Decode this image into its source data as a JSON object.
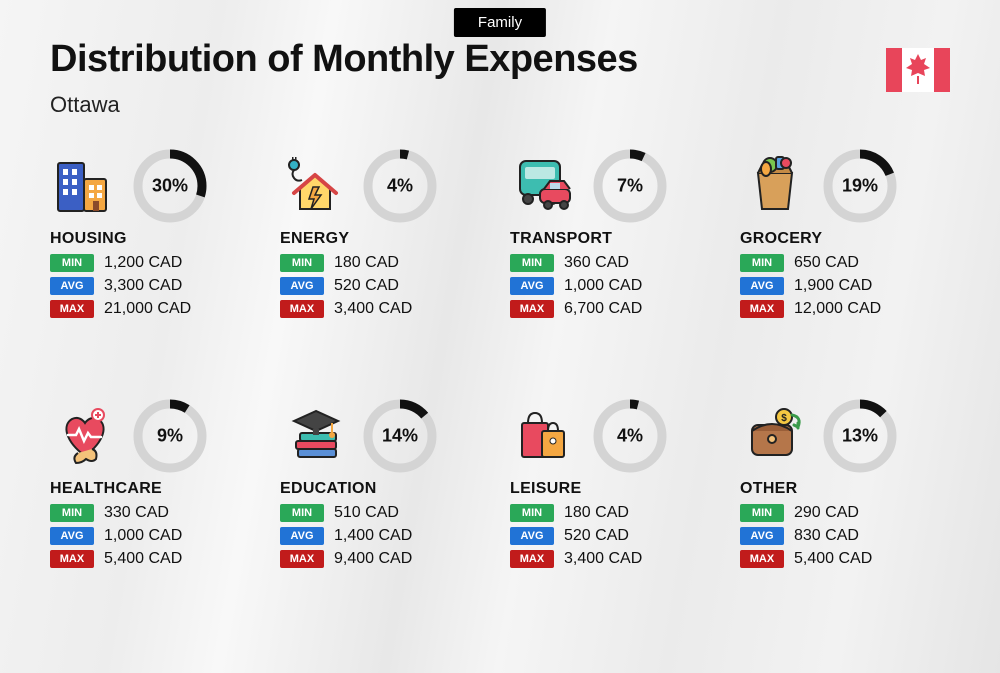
{
  "header": {
    "pill": "Family",
    "title": "Distribution of Monthly Expenses",
    "subtitle": "Ottawa"
  },
  "colors": {
    "min": "#2aa858",
    "avg": "#2173d6",
    "max": "#c11b1b",
    "ring_bg": "#d4d4d4",
    "ring_fg": "#111111",
    "flag_red": "#e8455a",
    "flag_white": "#ffffff"
  },
  "labels": {
    "min": "MIN",
    "avg": "AVG",
    "max": "MAX"
  },
  "ring": {
    "radius": 32,
    "stroke": 9
  },
  "categories": [
    {
      "name": "HOUSING",
      "pct": 30,
      "pct_label": "30%",
      "min": "1,200 CAD",
      "avg": "3,300 CAD",
      "max": "21,000 CAD",
      "icon": "housing"
    },
    {
      "name": "ENERGY",
      "pct": 4,
      "pct_label": "4%",
      "min": "180 CAD",
      "avg": "520 CAD",
      "max": "3,400 CAD",
      "icon": "energy"
    },
    {
      "name": "TRANSPORT",
      "pct": 7,
      "pct_label": "7%",
      "min": "360 CAD",
      "avg": "1,000 CAD",
      "max": "6,700 CAD",
      "icon": "transport"
    },
    {
      "name": "GROCERY",
      "pct": 19,
      "pct_label": "19%",
      "min": "650 CAD",
      "avg": "1,900 CAD",
      "max": "12,000 CAD",
      "icon": "grocery"
    },
    {
      "name": "HEALTHCARE",
      "pct": 9,
      "pct_label": "9%",
      "min": "330 CAD",
      "avg": "1,000 CAD",
      "max": "5,400 CAD",
      "icon": "healthcare"
    },
    {
      "name": "EDUCATION",
      "pct": 14,
      "pct_label": "14%",
      "min": "510 CAD",
      "avg": "1,400 CAD",
      "max": "9,400 CAD",
      "icon": "education"
    },
    {
      "name": "LEISURE",
      "pct": 4,
      "pct_label": "4%",
      "min": "180 CAD",
      "avg": "520 CAD",
      "max": "3,400 CAD",
      "icon": "leisure"
    },
    {
      "name": "OTHER",
      "pct": 13,
      "pct_label": "13%",
      "min": "290 CAD",
      "avg": "830 CAD",
      "max": "5,400 CAD",
      "icon": "other"
    }
  ]
}
